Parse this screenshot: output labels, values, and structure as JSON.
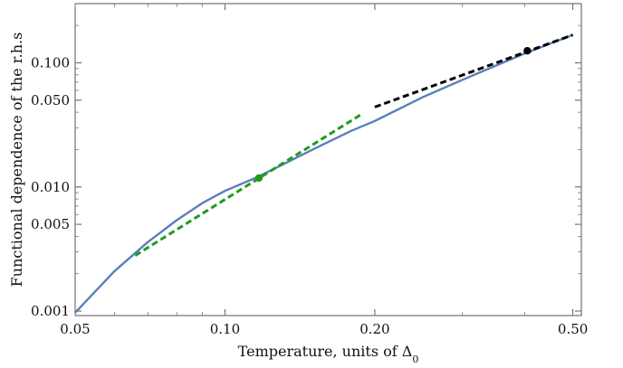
{
  "chart_data": {
    "type": "line",
    "xlabel_prefix": "Temperature, units of Δ",
    "xlabel_sub": "0",
    "ylabel": "Functional dependence of the r.h.s",
    "x_scale": "log",
    "y_scale": "log",
    "xlim": [
      0.05,
      0.52
    ],
    "ylim": [
      0.00092,
      0.3
    ],
    "xticks": [
      {
        "value": 0.05,
        "label": "0.05"
      },
      {
        "value": 0.1,
        "label": "0.10"
      },
      {
        "value": 0.2,
        "label": "0.20"
      },
      {
        "value": 0.5,
        "label": "0.50"
      }
    ],
    "yticks": [
      {
        "value": 0.001,
        "label": "0.001"
      },
      {
        "value": 0.005,
        "label": "0.005"
      },
      {
        "value": 0.01,
        "label": "0.010"
      },
      {
        "value": 0.05,
        "label": "0.050"
      },
      {
        "value": 0.1,
        "label": "0.100"
      }
    ],
    "grid": false,
    "series": [
      {
        "style": "solid",
        "color": "#5b7fba",
        "x": [
          0.05,
          0.06,
          0.07,
          0.08,
          0.09,
          0.1,
          0.115,
          0.13,
          0.15,
          0.18,
          0.2,
          0.25,
          0.3,
          0.35,
          0.4,
          0.45,
          0.5
        ],
        "y": [
          0.00097,
          0.0021,
          0.0036,
          0.0054,
          0.0074,
          0.0093,
          0.0118,
          0.015,
          0.02,
          0.0285,
          0.034,
          0.053,
          0.073,
          0.095,
          0.119,
          0.143,
          0.168
        ]
      },
      {
        "style": "dashed",
        "color": "#1e9b1e",
        "x": [
          0.066,
          0.188
        ],
        "y": [
          0.0028,
          0.0385
        ]
      },
      {
        "style": "dashed",
        "color": "#000000",
        "x": [
          0.2,
          0.5
        ],
        "y": [
          0.044,
          0.168
        ]
      }
    ],
    "points": [
      {
        "x": 0.117,
        "y": 0.0118,
        "color": "#1e9b1e"
      },
      {
        "x": 0.405,
        "y": 0.125,
        "color": "#000000"
      }
    ]
  }
}
